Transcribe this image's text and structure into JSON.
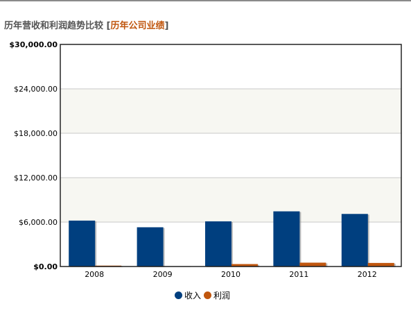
{
  "header": {
    "title": "历年营收和利润趋势比较",
    "bracket_open": "[",
    "link_text": "历年公司业绩",
    "bracket_close": "]"
  },
  "chart_data": {
    "type": "bar",
    "categories": [
      "2008",
      "2009",
      "2010",
      "2011",
      "2012"
    ],
    "series": [
      {
        "name": "收入",
        "color": "#003f7f",
        "values": [
          6200,
          5300,
          6100,
          7450,
          7100
        ]
      },
      {
        "name": "利润",
        "color": "#c0560e",
        "values": [
          120,
          20,
          330,
          520,
          480
        ]
      }
    ],
    "ylim": [
      0,
      30000
    ],
    "yticks": [
      0,
      6000,
      12000,
      18000,
      24000,
      30000
    ],
    "ytick_labels": [
      "$0.00",
      "$6,000.00",
      "$12,000.00",
      "$18,000.00",
      "$24,000.00",
      "$30,000.00"
    ],
    "title": "",
    "xlabel": "",
    "ylabel": "",
    "grid": true,
    "legend_position": "bottom-center"
  }
}
